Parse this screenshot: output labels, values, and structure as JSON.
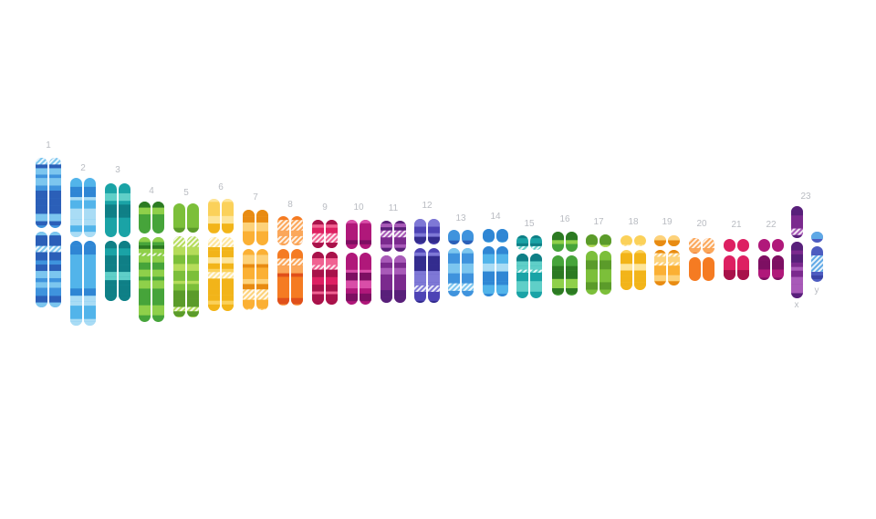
{
  "chromosomes": [
    {
      "label": "1",
      "palette": "blue"
    },
    {
      "label": "2",
      "palette": "lightblue"
    },
    {
      "label": "3",
      "palette": "teal"
    },
    {
      "label": "4",
      "palette": "green"
    },
    {
      "label": "5",
      "palette": "lime"
    },
    {
      "label": "6",
      "palette": "yellow"
    },
    {
      "label": "7",
      "palette": "amber"
    },
    {
      "label": "8",
      "palette": "orange"
    },
    {
      "label": "9",
      "palette": "crimson"
    },
    {
      "label": "10",
      "palette": "magenta"
    },
    {
      "label": "11",
      "palette": "purple"
    },
    {
      "label": "12",
      "palette": "indigo"
    },
    {
      "label": "13",
      "palette": "blue"
    },
    {
      "label": "14",
      "palette": "lightblue"
    },
    {
      "label": "15",
      "palette": "teal"
    },
    {
      "label": "16",
      "palette": "green"
    },
    {
      "label": "17",
      "palette": "lime"
    },
    {
      "label": "18",
      "palette": "yellow"
    },
    {
      "label": "19",
      "palette": "amber"
    },
    {
      "label": "20",
      "palette": "orange"
    },
    {
      "label": "21",
      "palette": "crimson"
    },
    {
      "label": "22",
      "palette": "magenta"
    },
    {
      "label": "23",
      "palette": "purple",
      "sex": {
        "x_label": "x",
        "y_label": "y"
      }
    }
  ],
  "palettes": {
    "blue": {
      "base": "#3f93dd",
      "dark": "#2b5fb8",
      "light": "#7cc6ef"
    },
    "lightblue": {
      "base": "#52b4ea",
      "dark": "#2f86d4",
      "light": "#a9dcf5"
    },
    "teal": {
      "base": "#1aa3a6",
      "dark": "#0f7f86",
      "light": "#5fcfc8"
    },
    "green": {
      "base": "#46a43a",
      "dark": "#2c7a22",
      "light": "#8fd04a"
    },
    "lime": {
      "base": "#7cbf3a",
      "dark": "#5b9b2a",
      "light": "#b5dc5a"
    },
    "yellow": {
      "base": "#fbd15a",
      "dark": "#f2b419",
      "light": "#fde59a"
    },
    "amber": {
      "base": "#fbb034",
      "dark": "#e88b12",
      "light": "#fdd27a"
    },
    "orange": {
      "base": "#f57b22",
      "dark": "#e0501a",
      "light": "#fba75a"
    },
    "crimson": {
      "base": "#dd2062",
      "dark": "#a8124a",
      "light": "#f06292"
    },
    "magenta": {
      "base": "#b0187a",
      "dark": "#7d0f62",
      "light": "#d94ea8"
    },
    "purple": {
      "base": "#7b2a8e",
      "dark": "#58207a",
      "light": "#a85ab8"
    },
    "indigo": {
      "base": "#4d43b5",
      "dark": "#332c8e",
      "light": "#7e78d6"
    }
  }
}
